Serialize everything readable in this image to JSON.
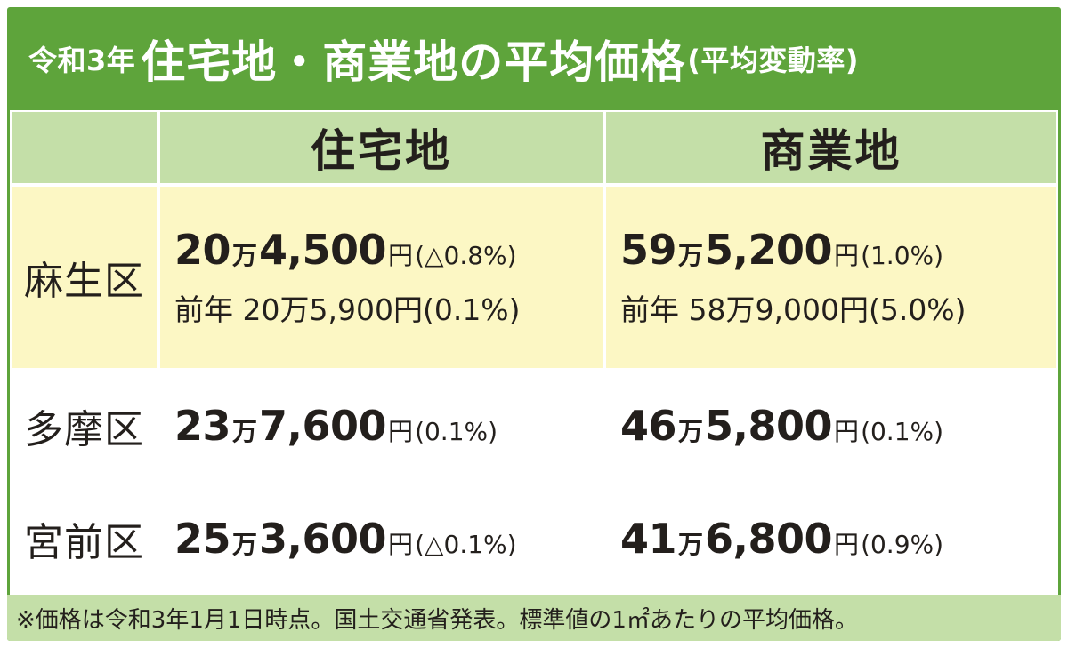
{
  "title": {
    "prefix": "令和3年",
    "main": "住宅地・商業地の平均価格",
    "suffix": "(平均変動率)"
  },
  "headers": {
    "residential": "住宅地",
    "commercial": "商業地"
  },
  "rows": [
    {
      "area": "麻生区",
      "residential": {
        "man": "20",
        "rest": "4,500",
        "pct": "(△0.8%)"
      },
      "residential_prev": "前年 20万5,900円(0.1%)",
      "commercial": {
        "man": "59",
        "rest": "5,200",
        "pct": "(1.0%)"
      },
      "commercial_prev": "前年 58万9,000円(5.0%)"
    },
    {
      "area": "多摩区",
      "residential": {
        "man": "23",
        "rest": "7,600",
        "pct": "(0.1%)"
      },
      "commercial": {
        "man": "46",
        "rest": "5,800",
        "pct": "(0.1%)"
      }
    },
    {
      "area": "宮前区",
      "residential": {
        "man": "25",
        "rest": "3,600",
        "pct": "(△0.1%)"
      },
      "commercial": {
        "man": "41",
        "rest": "6,800",
        "pct": "(0.9%)"
      }
    }
  ],
  "units": {
    "man": "万",
    "yen": "円"
  },
  "footnote": "※価格は令和3年1月1日時点。国土交通省発表。標準値の1㎡あたりの平均価格。",
  "colors": {
    "green": "#5ea43b",
    "light_green": "#c4dfa8",
    "yellow": "#fcf7c4",
    "white": "#ffffff",
    "text": "#231f1c"
  },
  "chart_data": {
    "type": "table",
    "title": "令和3年住宅地・商業地の平均価格(平均変動率)",
    "columns": [
      "",
      "住宅地",
      "商業地"
    ],
    "rows": [
      [
        "麻生区",
        "20万4,500円(△0.8%) 前年 20万5,900円(0.1%)",
        "59万5,200円(1.0%) 前年 58万9,000円(5.0%)"
      ],
      [
        "多摩区",
        "23万7,600円(0.1%)",
        "46万5,800円(0.1%)"
      ],
      [
        "宮前区",
        "25万3,600円(△0.1%)",
        "41万6,800円(0.9%)"
      ]
    ],
    "values_yen": {
      "麻生区": {
        "住宅地": 204500,
        "商業地": 595200
      },
      "多摩区": {
        "住宅地": 237600,
        "商業地": 465800
      },
      "宮前区": {
        "住宅地": 253600,
        "商業地": 416800
      }
    },
    "change_pct": {
      "麻生区": {
        "住宅地": -0.8,
        "商業地": 1.0
      },
      "多摩区": {
        "住宅地": 0.1,
        "商業地": 0.1
      },
      "宮前区": {
        "住宅地": -0.1,
        "商業地": 0.9
      }
    }
  }
}
